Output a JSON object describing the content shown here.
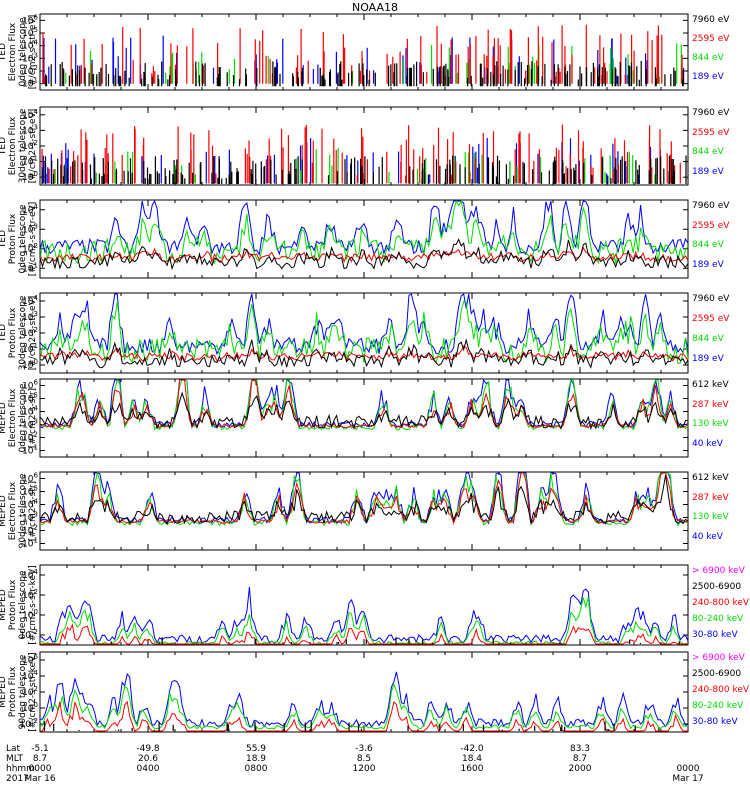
{
  "title": "NOAA18",
  "chart_data": [
    {
      "type": "line",
      "ylabel": [
        "TED",
        "Electron Flux",
        "0deg telescope",
        "[#/cm2-s-str-eV]"
      ],
      "yticks": [
        "10^1",
        "10^2",
        "10^3",
        "10^4",
        "10^5",
        "10^6"
      ],
      "log": true,
      "ylim": [
        1,
        1000000
      ],
      "series": [
        {
          "name": "7960 eV",
          "color": "#000000"
        },
        {
          "name": "2595 eV",
          "color": "#ff0000"
        },
        {
          "name": "844 eV",
          "color": "#00dd00"
        },
        {
          "name": "189 eV",
          "color": "#0000ff"
        }
      ],
      "style": "sparse",
      "base": 1.0,
      "peak": 5.2
    },
    {
      "type": "line",
      "ylabel": [
        "TED",
        "Electron Flux",
        "30deg telescope",
        "[#/cm2-s-str-eV]"
      ],
      "yticks": [
        "10^0",
        "10^1",
        "10^2",
        "10^3",
        "10^4"
      ],
      "log": true,
      "ylim": [
        1,
        100000
      ],
      "series": [
        {
          "name": "7960 eV",
          "color": "#000000"
        },
        {
          "name": "2595 eV",
          "color": "#ff0000"
        },
        {
          "name": "844 eV",
          "color": "#00dd00"
        },
        {
          "name": "189 eV",
          "color": "#0000ff"
        }
      ],
      "style": "sparse",
      "base": 0.6,
      "peak": 3.9
    },
    {
      "type": "line",
      "ylabel": [
        "TED",
        "Proton Flux",
        "0deg telescope",
        "[#/cm2-s-str-eV]"
      ],
      "yticks": [
        "10^1",
        "10^2",
        "10^3",
        "10^4"
      ],
      "log": true,
      "ylim": [
        1,
        100000
      ],
      "series": [
        {
          "name": "7960 eV",
          "color": "#000000"
        },
        {
          "name": "2595 eV",
          "color": "#ff0000"
        },
        {
          "name": "844 eV",
          "color": "#00dd00"
        },
        {
          "name": "189 eV",
          "color": "#0000ff"
        }
      ],
      "style": "dense",
      "base": 1.6,
      "peak": 4.0
    },
    {
      "type": "line",
      "ylabel": [
        "TED",
        "Proton Flux",
        "30deg telescope",
        "[#/cm2-s-str-eV]"
      ],
      "yticks": [
        "10^0",
        "10^1",
        "10^2",
        "10^3",
        "10^4"
      ],
      "log": true,
      "ylim": [
        1,
        100000
      ],
      "series": [
        {
          "name": "7960 eV",
          "color": "#000000"
        },
        {
          "name": "2595 eV",
          "color": "#ff0000"
        },
        {
          "name": "844 eV",
          "color": "#00dd00"
        },
        {
          "name": "189 eV",
          "color": "#0000ff"
        }
      ],
      "style": "dense",
      "base": 1.3,
      "peak": 3.8
    },
    {
      "type": "line",
      "ylabel": [
        "MEPED",
        "Electron Flux",
        "0deg telescope",
        "[#/cm2-s-str]"
      ],
      "yticks": [
        "10^1",
        "10^2",
        "10^3",
        "10^4",
        "10^5",
        "10^6"
      ],
      "log": true,
      "ylim": [
        10,
        10000000
      ],
      "series": [
        {
          "name": "612 keV",
          "color": "#000000"
        },
        {
          "name": "287 keV",
          "color": "#ff0000"
        },
        {
          "name": "130 keV",
          "color": "#00dd00"
        },
        {
          "name": "40 keV",
          "color": "#0000ff"
        }
      ],
      "style": "meped",
      "base": 2.3,
      "peak": 5.8
    },
    {
      "type": "line",
      "ylabel": [
        "MEPED",
        "Electron Flux",
        "90deg telescope",
        "[#/cm2-s-str]"
      ],
      "yticks": [
        "10^1",
        "10^2",
        "10^3",
        "10^4",
        "10^5",
        "10^6"
      ],
      "log": true,
      "ylim": [
        10,
        10000000
      ],
      "series": [
        {
          "name": "612 keV",
          "color": "#000000"
        },
        {
          "name": "287 keV",
          "color": "#ff0000"
        },
        {
          "name": "130 keV",
          "color": "#00dd00"
        },
        {
          "name": "40 keV",
          "color": "#0000ff"
        }
      ],
      "style": "meped",
      "base": 2.1,
      "peak": 5.8
    },
    {
      "type": "line",
      "ylabel": [
        "MEPED",
        "Proton Flux",
        "0deg telescope",
        "[#/cm2-s-str-keV]"
      ],
      "yticks": [
        "10^-2",
        "10^0",
        "10^2",
        "10^4"
      ],
      "log": true,
      "ylim": [
        0.01,
        1000000
      ],
      "series": [
        {
          "name": "> 6900 keV",
          "color": "#ff00ff"
        },
        {
          "name": "2500-6900",
          "color": "#000000"
        },
        {
          "name": "240-800 keV",
          "color": "#ff0000"
        },
        {
          "name": "80-240 keV",
          "color": "#00dd00"
        },
        {
          "name": "30-80 keV",
          "color": "#0000ff"
        }
      ],
      "style": "proton",
      "base": 0.0,
      "peak": 3.6
    },
    {
      "type": "line",
      "ylabel": [
        "MEPED",
        "Proton Flux",
        "90deg telescope",
        "[#/cm2-s-str-keV]"
      ],
      "yticks": [
        "10^-2",
        "10^0",
        "10^2",
        "10^4",
        "10^6"
      ],
      "log": true,
      "ylim": [
        0.01,
        1000000
      ],
      "series": [
        {
          "name": "> 6900 keV",
          "color": "#ff00ff"
        },
        {
          "name": "2500-6900",
          "color": "#000000"
        },
        {
          "name": "240-800 keV",
          "color": "#ff0000"
        },
        {
          "name": "80-240 keV",
          "color": "#00dd00"
        },
        {
          "name": "30-80 keV",
          "color": "#0000ff"
        }
      ],
      "style": "proton",
      "base": 0.3,
      "peak": 4.2
    }
  ],
  "footer": {
    "labels": [
      "Lat",
      "MLT",
      "hhmm",
      "2017"
    ],
    "ticks": [
      {
        "lat": "-5.1",
        "mlt": "8.7",
        "hhmm": "0000",
        "date": "Mar 16"
      },
      {
        "lat": "-49.8",
        "mlt": "20.6",
        "hhmm": "0400",
        "date": ""
      },
      {
        "lat": "55.9",
        "mlt": "18.9",
        "hhmm": "0800",
        "date": ""
      },
      {
        "lat": "-3.6",
        "mlt": "8.5",
        "hhmm": "1200",
        "date": ""
      },
      {
        "lat": "-42.0",
        "mlt": "18.4",
        "hhmm": "1600",
        "date": ""
      },
      {
        "lat": "83.3",
        "mlt": "8.7",
        "hhmm": "2000",
        "date": ""
      },
      {
        "lat": "",
        "mlt": "",
        "hhmm": "0000",
        "date": "Mar 17"
      }
    ]
  }
}
